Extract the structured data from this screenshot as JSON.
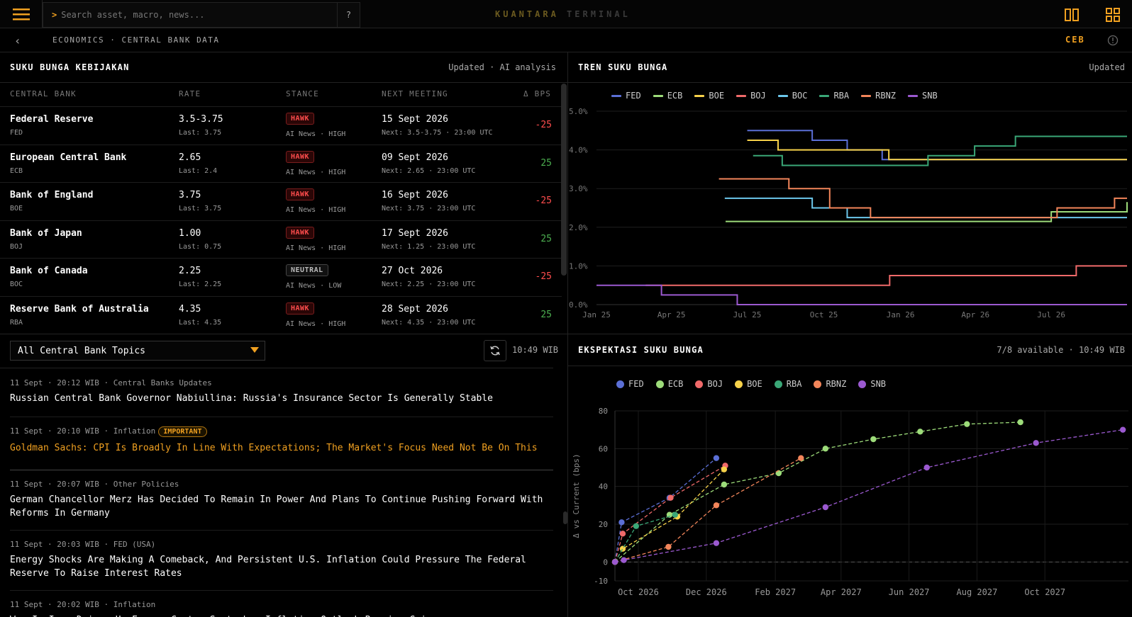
{
  "app": {
    "brand_primary": "KUANTARA",
    "brand_secondary": "TERMINAL",
    "accent": "#f0a020"
  },
  "search": {
    "prompt": ">",
    "placeholder": "Search asset, macro, news...",
    "help_label": "?"
  },
  "breadcrumb": {
    "back": "‹",
    "path": "ECONOMICS · CENTRAL BANK DATA",
    "code": "CEB"
  },
  "policy_panel": {
    "title": "SUKU BUNGA KEBIJAKAN",
    "meta": "Updated · AI analysis",
    "columns": [
      "CENTRAL BANK",
      "RATE",
      "STANCE",
      "NEXT MEETING",
      "Δ BPS"
    ],
    "rows": [
      {
        "name": "Federal Reserve",
        "code": "FED",
        "rate": "3.5-3.75",
        "last": "Last: 3.75",
        "stance": "HAWK",
        "stance_sub": "AI News · HIGH",
        "meeting": "15 Sept 2026",
        "next": "Next: 3.5-3.75 · 23:00 UTC",
        "delta": "-25"
      },
      {
        "name": "European Central Bank",
        "code": "ECB",
        "rate": "2.65",
        "last": "Last: 2.4",
        "stance": "HAWK",
        "stance_sub": "AI News · HIGH",
        "meeting": "09 Sept 2026",
        "next": "Next: 2.65 · 23:00 UTC",
        "delta": "25"
      },
      {
        "name": "Bank of England",
        "code": "BOE",
        "rate": "3.75",
        "last": "Last: 3.75",
        "stance": "HAWK",
        "stance_sub": "AI News · HIGH",
        "meeting": "16 Sept 2026",
        "next": "Next: 3.75 · 23:00 UTC",
        "delta": "-25"
      },
      {
        "name": "Bank of Japan",
        "code": "BOJ",
        "rate": "1.00",
        "last": "Last: 0.75",
        "stance": "HAWK",
        "stance_sub": "AI News · HIGH",
        "meeting": "17 Sept 2026",
        "next": "Next: 1.25 · 23:00 UTC",
        "delta": "25"
      },
      {
        "name": "Bank of Canada",
        "code": "BOC",
        "rate": "2.25",
        "last": "Last: 2.25",
        "stance": "NEUTRAL",
        "stance_sub": "AI News · LOW",
        "meeting": "27 Oct 2026",
        "next": "Next: 2.25 · 23:00 UTC",
        "delta": "-25"
      },
      {
        "name": "Reserve Bank of Australia",
        "code": "RBA",
        "rate": "4.35",
        "last": "Last: 4.35",
        "stance": "HAWK",
        "stance_sub": "AI News · HIGH",
        "meeting": "28 Sept 2026",
        "next": "Next: 4.35 · 23:00 UTC",
        "delta": "25"
      }
    ]
  },
  "news_panel": {
    "topic_filter": "All Central Bank Topics",
    "clock": "10:49 WIB",
    "items": [
      {
        "meta": "11 Sept · 20:12 WIB · Central Banks Updates",
        "badge": "",
        "title": "Russian Central Bank Governor Nabiullina: Russia's Insurance Sector Is Generally Stable"
      },
      {
        "meta": "11 Sept · 20:10 WIB · Inflation",
        "badge": "IMPORTANT",
        "title": "Goldman Sachs: CPI Is Broadly In Line With Expectations; The Market's Focus Need Not Be On This"
      },
      {
        "meta": "11 Sept · 20:07 WIB · Other Policies",
        "badge": "",
        "title": "German Chancellor Merz Has Decided To Remain In Power And Plans To Continue Pushing Forward With Reforms In Germany"
      },
      {
        "meta": "11 Sept · 20:03 WIB · FED (USA)",
        "badge": "",
        "title": "Energy Shocks Are Making A Comeback, And Persistent U.S. Inflation Could Pressure The Federal Reserve To Raise Interest Rates"
      },
      {
        "meta": "11 Sept · 20:02 WIB · Inflation",
        "badge": "",
        "title": "War In Iran Drives Up Energy Costs; September Inflation Outlook Remains Grim"
      }
    ]
  },
  "trend_panel": {
    "title": "TREN SUKU BUNGA",
    "meta": "Updated"
  },
  "expect_panel": {
    "title": "EKSPEKTASI SUKU BUNGA",
    "meta": "7/8 available · 10:49 WIB"
  },
  "chart_data": [
    {
      "type": "line",
      "step": true,
      "x_ticks": [
        "Jan 25",
        "Apr 25",
        "Jul 25",
        "Oct 25",
        "Jan 26",
        "Apr 26",
        "Jul 26"
      ],
      "x_range": [
        "2025-01-01",
        "2026-09-30"
      ],
      "ylim": [
        0,
        5
      ],
      "y_ticks": [
        "0.0%",
        "1.0%",
        "2.0%",
        "3.0%",
        "4.0%",
        "5.0%"
      ],
      "grid": true,
      "legend_position": "top-left",
      "series": [
        {
          "name": "FED",
          "color": "#5b6fd6",
          "points": [
            [
              "2025-07-01",
              4.5
            ],
            [
              "2025-09-17",
              4.25
            ],
            [
              "2025-10-29",
              4.0
            ],
            [
              "2025-12-10",
              3.75
            ],
            [
              "2026-09-30",
              3.75
            ]
          ]
        },
        {
          "name": "ECB",
          "color": "#9ddc7a",
          "points": [
            [
              "2025-06-05",
              2.15
            ],
            [
              "2026-06-30",
              2.15
            ],
            [
              "2026-07-01",
              2.4
            ],
            [
              "2026-09-30",
              2.65
            ]
          ]
        },
        {
          "name": "BOE",
          "color": "#f7d24a",
          "points": [
            [
              "2025-07-01",
              4.25
            ],
            [
              "2025-08-07",
              4.0
            ],
            [
              "2025-12-18",
              3.75
            ],
            [
              "2026-09-30",
              3.75
            ]
          ]
        },
        {
          "name": "BOJ",
          "color": "#f06a6a",
          "points": [
            [
              "2025-03-01",
              0.5
            ],
            [
              "2025-12-19",
              0.75
            ],
            [
              "2026-07-31",
              1.0
            ],
            [
              "2026-09-30",
              1.0
            ]
          ]
        },
        {
          "name": "BOC",
          "color": "#6cc8ec",
          "points": [
            [
              "2025-06-04",
              2.75
            ],
            [
              "2025-09-17",
              2.5
            ],
            [
              "2025-10-29",
              2.25
            ],
            [
              "2026-09-30",
              2.25
            ]
          ]
        },
        {
          "name": "RBA",
          "color": "#3aa777",
          "points": [
            [
              "2025-07-08",
              3.85
            ],
            [
              "2025-08-12",
              3.6
            ],
            [
              "2026-02-03",
              3.85
            ],
            [
              "2026-03-31",
              4.1
            ],
            [
              "2026-05-19",
              4.35
            ],
            [
              "2026-09-30",
              4.35
            ]
          ]
        },
        {
          "name": "RBNZ",
          "color": "#f2855a",
          "points": [
            [
              "2025-05-28",
              3.25
            ],
            [
              "2025-08-20",
              3.0
            ],
            [
              "2025-10-08",
              2.5
            ],
            [
              "2025-11-26",
              2.25
            ],
            [
              "2026-07-08",
              2.5
            ],
            [
              "2026-09-15",
              2.75
            ],
            [
              "2026-09-30",
              2.75
            ]
          ]
        },
        {
          "name": "SNB",
          "color": "#9b59d0",
          "points": [
            [
              "2025-01-01",
              0.5
            ],
            [
              "2025-03-20",
              0.25
            ],
            [
              "2025-06-19",
              0.0
            ],
            [
              "2026-09-30",
              0.0
            ]
          ]
        }
      ]
    },
    {
      "type": "scatter",
      "connected": true,
      "x_ticks": [
        "Oct 2026",
        "Dec 2026",
        "Feb 2027",
        "Apr 2027",
        "Jun 2027",
        "Aug 2027",
        "Oct 2027"
      ],
      "x_range": [
        "2026-09-10",
        "2027-12-15"
      ],
      "ylim": [
        -10,
        80
      ],
      "y_ticks": [
        "-10",
        "0",
        "20",
        "40",
        "60",
        "80"
      ],
      "ylabel": "Δ vs Current (bps)",
      "grid": true,
      "legend_position": "top-left",
      "series": [
        {
          "name": "FED",
          "color": "#5b6fd6",
          "points": [
            [
              "2026-09-10",
              0
            ],
            [
              "2026-09-16",
              21
            ],
            [
              "2026-10-29",
              34
            ],
            [
              "2026-12-10",
              55
            ]
          ]
        },
        {
          "name": "ECB",
          "color": "#9ddc7a",
          "points": [
            [
              "2026-09-10",
              0
            ],
            [
              "2026-10-29",
              25
            ],
            [
              "2026-12-17",
              41
            ],
            [
              "2027-02-04",
              47
            ],
            [
              "2027-03-18",
              60
            ],
            [
              "2027-04-30",
              65
            ],
            [
              "2027-06-11",
              69
            ],
            [
              "2027-07-23",
              73
            ],
            [
              "2027-09-09",
              74
            ]
          ]
        },
        {
          "name": "BOJ",
          "color": "#f06a6a",
          "points": [
            [
              "2026-09-10",
              0
            ],
            [
              "2026-09-17",
              15
            ],
            [
              "2026-10-30",
              34
            ],
            [
              "2026-12-18",
              51
            ]
          ]
        },
        {
          "name": "BOE",
          "color": "#f7d24a",
          "points": [
            [
              "2026-09-10",
              0
            ],
            [
              "2026-09-17",
              7
            ],
            [
              "2026-11-05",
              24
            ],
            [
              "2026-12-17",
              49
            ]
          ]
        },
        {
          "name": "RBA",
          "color": "#3aa777",
          "points": [
            [
              "2026-09-10",
              0
            ],
            [
              "2026-09-29",
              19
            ],
            [
              "2026-11-03",
              25
            ]
          ]
        },
        {
          "name": "RBNZ",
          "color": "#f2855a",
          "points": [
            [
              "2026-09-10",
              0
            ],
            [
              "2026-10-28",
              8
            ],
            [
              "2026-12-10",
              30
            ],
            [
              "2027-02-24",
              55
            ]
          ]
        },
        {
          "name": "SNB",
          "color": "#9b59d0",
          "points": [
            [
              "2026-09-10",
              0
            ],
            [
              "2026-09-18",
              1
            ],
            [
              "2026-12-10",
              10
            ],
            [
              "2027-03-18",
              29
            ],
            [
              "2027-06-17",
              50
            ],
            [
              "2027-09-23",
              63
            ],
            [
              "2027-12-10",
              70
            ]
          ]
        }
      ]
    }
  ]
}
